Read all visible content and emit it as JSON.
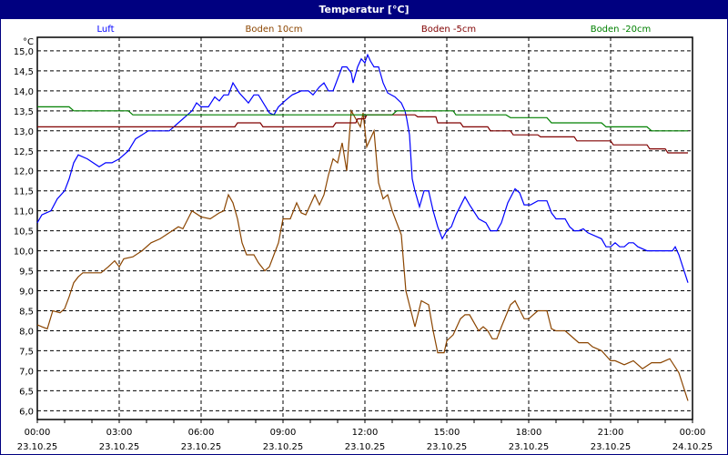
{
  "window": {
    "title": "Temperatur [°C]"
  },
  "chart_data": {
    "type": "line",
    "title": "Temperatur [°C]",
    "ylabel": "°C",
    "ylim": [
      5.78,
      15.34
    ],
    "yticks": [
      "6,0",
      "6,5",
      "7,0",
      "7,5",
      "8,0",
      "8,5",
      "9,0",
      "9,5",
      "10,0",
      "10,5",
      "11,0",
      "11,5",
      "12,0",
      "12,5",
      "13,0",
      "13,5",
      "14,0",
      "14,5",
      "15,0"
    ],
    "xrange": [
      "23.10.25 00:00",
      "24.10.25 00:00"
    ],
    "xticks": [
      {
        "time": "00:00",
        "date": "23.10.25"
      },
      {
        "time": "03:00",
        "date": "23.10.25"
      },
      {
        "time": "06:00",
        "date": "23.10.25"
      },
      {
        "time": "09:00",
        "date": "23.10.25"
      },
      {
        "time": "12:00",
        "date": "23.10.25"
      },
      {
        "time": "15:00",
        "date": "23.10.25"
      },
      {
        "time": "18:00",
        "date": "23.10.25"
      },
      {
        "time": "21:00",
        "date": "23.10.25"
      },
      {
        "time": "00:00",
        "date": "24.10.25"
      }
    ],
    "grid": true,
    "legend_placement": "top",
    "series": [
      {
        "name": "Luft",
        "color": "#0000ff",
        "points": [
          [
            "00:00",
            10.7
          ],
          [
            "00:10",
            10.9
          ],
          [
            "00:30",
            11.0
          ],
          [
            "00:44",
            11.3
          ],
          [
            "01:00",
            11.5
          ],
          [
            "01:10",
            11.8
          ],
          [
            "01:20",
            12.2
          ],
          [
            "01:30",
            12.4
          ],
          [
            "01:50",
            12.3
          ],
          [
            "02:16",
            12.1
          ],
          [
            "02:30",
            12.2
          ],
          [
            "02:44",
            12.2
          ],
          [
            "03:00",
            12.3
          ],
          [
            "03:20",
            12.5
          ],
          [
            "03:36",
            12.8
          ],
          [
            "03:50",
            12.9
          ],
          [
            "04:04",
            13.0
          ],
          [
            "04:50",
            13.0
          ],
          [
            "05:10",
            13.2
          ],
          [
            "05:40",
            13.5
          ],
          [
            "05:50",
            13.7
          ],
          [
            "06:00",
            13.6
          ],
          [
            "06:16",
            13.6
          ],
          [
            "06:30",
            13.85
          ],
          [
            "06:40",
            13.75
          ],
          [
            "06:50",
            13.9
          ],
          [
            "07:00",
            13.9
          ],
          [
            "07:10",
            14.2
          ],
          [
            "07:24",
            13.95
          ],
          [
            "07:44",
            13.7
          ],
          [
            "07:56",
            13.9
          ],
          [
            "08:06",
            13.9
          ],
          [
            "08:30",
            13.45
          ],
          [
            "08:40",
            13.4
          ],
          [
            "08:50",
            13.6
          ],
          [
            "09:04",
            13.75
          ],
          [
            "09:20",
            13.9
          ],
          [
            "09:40",
            14.0
          ],
          [
            "09:56",
            14.0
          ],
          [
            "10:06",
            13.9
          ],
          [
            "10:20",
            14.1
          ],
          [
            "10:30",
            14.2
          ],
          [
            "10:40",
            14.0
          ],
          [
            "10:50",
            14.0
          ],
          [
            "11:00",
            14.3
          ],
          [
            "11:10",
            14.6
          ],
          [
            "11:20",
            14.6
          ],
          [
            "11:30",
            14.45
          ],
          [
            "11:34",
            14.2
          ],
          [
            "11:44",
            14.6
          ],
          [
            "11:52",
            14.8
          ],
          [
            "12:00",
            14.7
          ],
          [
            "12:06",
            14.9
          ],
          [
            "12:12",
            14.75
          ],
          [
            "12:20",
            14.6
          ],
          [
            "12:30",
            14.6
          ],
          [
            "12:40",
            14.2
          ],
          [
            "12:50",
            13.95
          ],
          [
            "13:06",
            13.85
          ],
          [
            "13:20",
            13.7
          ],
          [
            "13:28",
            13.5
          ],
          [
            "13:32",
            13.3
          ],
          [
            "13:38",
            12.9
          ],
          [
            "13:44",
            11.8
          ],
          [
            "13:50",
            11.5
          ],
          [
            "14:00",
            11.1
          ],
          [
            "14:10",
            11.5
          ],
          [
            "14:20",
            11.5
          ],
          [
            "14:30",
            11.0
          ],
          [
            "14:40",
            10.6
          ],
          [
            "14:50",
            10.3
          ],
          [
            "15:00",
            10.5
          ],
          [
            "15:10",
            10.6
          ],
          [
            "15:20",
            10.9
          ],
          [
            "15:40",
            11.35
          ],
          [
            "15:50",
            11.15
          ],
          [
            "16:10",
            10.8
          ],
          [
            "16:26",
            10.7
          ],
          [
            "16:36",
            10.5
          ],
          [
            "16:50",
            10.5
          ],
          [
            "17:00",
            10.7
          ],
          [
            "17:14",
            11.2
          ],
          [
            "17:30",
            11.55
          ],
          [
            "17:40",
            11.45
          ],
          [
            "17:50",
            11.15
          ],
          [
            "18:04",
            11.15
          ],
          [
            "18:20",
            11.25
          ],
          [
            "18:40",
            11.25
          ],
          [
            "18:50",
            10.95
          ],
          [
            "19:00",
            10.8
          ],
          [
            "19:20",
            10.8
          ],
          [
            "19:30",
            10.6
          ],
          [
            "19:40",
            10.5
          ],
          [
            "19:50",
            10.5
          ],
          [
            "20:00",
            10.55
          ],
          [
            "20:10",
            10.45
          ],
          [
            "20:30",
            10.35
          ],
          [
            "20:40",
            10.3
          ],
          [
            "20:50",
            10.1
          ],
          [
            "21:00",
            10.1
          ],
          [
            "21:10",
            10.2
          ],
          [
            "21:20",
            10.1
          ],
          [
            "21:30",
            10.1
          ],
          [
            "21:40",
            10.2
          ],
          [
            "21:50",
            10.2
          ],
          [
            "22:00",
            10.1
          ],
          [
            "22:20",
            10.0
          ],
          [
            "23:16",
            10.0
          ],
          [
            "23:22",
            10.1
          ],
          [
            "23:30",
            9.9
          ],
          [
            "23:50",
            9.2
          ]
        ]
      },
      {
        "name": "Boden 10cm",
        "color": "#8b4500",
        "points": [
          [
            "00:00",
            8.15
          ],
          [
            "00:10",
            8.1
          ],
          [
            "00:22",
            8.05
          ],
          [
            "00:34",
            8.5
          ],
          [
            "00:50",
            8.45
          ],
          [
            "01:00",
            8.55
          ],
          [
            "01:10",
            8.85
          ],
          [
            "01:20",
            9.2
          ],
          [
            "01:30",
            9.35
          ],
          [
            "01:40",
            9.45
          ],
          [
            "02:20",
            9.45
          ],
          [
            "02:36",
            9.6
          ],
          [
            "02:50",
            9.75
          ],
          [
            "03:00",
            9.6
          ],
          [
            "03:10",
            9.8
          ],
          [
            "03:30",
            9.85
          ],
          [
            "03:50",
            10.0
          ],
          [
            "04:10",
            10.2
          ],
          [
            "04:30",
            10.3
          ],
          [
            "04:50",
            10.45
          ],
          [
            "05:10",
            10.6
          ],
          [
            "05:20",
            10.55
          ],
          [
            "05:40",
            11.0
          ],
          [
            "06:00",
            10.85
          ],
          [
            "06:20",
            10.8
          ],
          [
            "06:40",
            10.95
          ],
          [
            "06:50",
            11.0
          ],
          [
            "07:00",
            11.4
          ],
          [
            "07:10",
            11.2
          ],
          [
            "07:20",
            10.8
          ],
          [
            "07:30",
            10.2
          ],
          [
            "07:40",
            9.9
          ],
          [
            "07:56",
            9.9
          ],
          [
            "08:06",
            9.7
          ],
          [
            "08:20",
            9.5
          ],
          [
            "08:30",
            9.6
          ],
          [
            "08:40",
            9.9
          ],
          [
            "08:50",
            10.2
          ],
          [
            "09:00",
            10.8
          ],
          [
            "09:16",
            10.8
          ],
          [
            "09:30",
            11.2
          ],
          [
            "09:40",
            10.95
          ],
          [
            "09:50",
            10.9
          ],
          [
            "10:10",
            11.4
          ],
          [
            "10:20",
            11.15
          ],
          [
            "10:30",
            11.4
          ],
          [
            "10:40",
            11.9
          ],
          [
            "10:50",
            12.3
          ],
          [
            "11:00",
            12.2
          ],
          [
            "11:10",
            12.7
          ],
          [
            "11:20",
            12.0
          ],
          [
            "11:30",
            13.5
          ],
          [
            "11:40",
            13.3
          ],
          [
            "11:50",
            13.1
          ],
          [
            "11:56",
            13.45
          ],
          [
            "12:04",
            12.6
          ],
          [
            "12:20",
            13.0
          ],
          [
            "12:30",
            11.7
          ],
          [
            "12:40",
            11.3
          ],
          [
            "12:50",
            11.4
          ],
          [
            "13:00",
            11.0
          ],
          [
            "13:20",
            10.4
          ],
          [
            "13:30",
            9.0
          ],
          [
            "13:50",
            8.1
          ],
          [
            "14:04",
            8.75
          ],
          [
            "14:20",
            8.65
          ],
          [
            "14:30",
            8.0
          ],
          [
            "14:40",
            7.45
          ],
          [
            "14:54",
            7.45
          ],
          [
            "15:00",
            7.75
          ],
          [
            "15:14",
            7.9
          ],
          [
            "15:30",
            8.3
          ],
          [
            "15:40",
            8.4
          ],
          [
            "15:50",
            8.4
          ],
          [
            "16:10",
            8.0
          ],
          [
            "16:20",
            8.1
          ],
          [
            "16:30",
            8.0
          ],
          [
            "16:40",
            7.8
          ],
          [
            "16:50",
            7.8
          ],
          [
            "17:00",
            8.1
          ],
          [
            "17:20",
            8.65
          ],
          [
            "17:30",
            8.75
          ],
          [
            "17:50",
            8.3
          ],
          [
            "18:00",
            8.3
          ],
          [
            "18:20",
            8.5
          ],
          [
            "18:40",
            8.5
          ],
          [
            "18:50",
            8.05
          ],
          [
            "19:00",
            8.0
          ],
          [
            "19:20",
            8.0
          ],
          [
            "19:50",
            7.7
          ],
          [
            "20:10",
            7.7
          ],
          [
            "20:20",
            7.6
          ],
          [
            "20:40",
            7.5
          ],
          [
            "21:00",
            7.25
          ],
          [
            "21:10",
            7.25
          ],
          [
            "21:30",
            7.15
          ],
          [
            "21:50",
            7.25
          ],
          [
            "22:10",
            7.05
          ],
          [
            "22:30",
            7.2
          ],
          [
            "22:50",
            7.2
          ],
          [
            "23:10",
            7.3
          ],
          [
            "23:30",
            6.95
          ],
          [
            "23:50",
            6.25
          ]
        ]
      },
      {
        "name": "Boden -5cm",
        "color": "#800000",
        "points": [
          [
            "00:00",
            13.1
          ],
          [
            "07:14",
            13.1
          ],
          [
            "07:20",
            13.2
          ],
          [
            "08:10",
            13.2
          ],
          [
            "08:16",
            13.1
          ],
          [
            "10:50",
            13.1
          ],
          [
            "10:56",
            13.2
          ],
          [
            "11:40",
            13.2
          ],
          [
            "11:44",
            13.3
          ],
          [
            "12:00",
            13.3
          ],
          [
            "12:04",
            13.4
          ],
          [
            "13:50",
            13.4
          ],
          [
            "13:56",
            13.35
          ],
          [
            "14:36",
            13.35
          ],
          [
            "14:40",
            13.2
          ],
          [
            "15:30",
            13.2
          ],
          [
            "15:36",
            13.1
          ],
          [
            "16:30",
            13.1
          ],
          [
            "16:36",
            13.0
          ],
          [
            "17:20",
            13.0
          ],
          [
            "17:26",
            12.9
          ],
          [
            "18:20",
            12.9
          ],
          [
            "18:26",
            12.85
          ],
          [
            "19:40",
            12.85
          ],
          [
            "19:46",
            12.75
          ],
          [
            "21:00",
            12.75
          ],
          [
            "21:06",
            12.65
          ],
          [
            "22:20",
            12.65
          ],
          [
            "22:26",
            12.55
          ],
          [
            "23:00",
            12.55
          ],
          [
            "23:06",
            12.45
          ],
          [
            "23:50",
            12.45
          ]
        ]
      },
      {
        "name": "Boden -20cm",
        "color": "#008000",
        "points": [
          [
            "00:00",
            13.6
          ],
          [
            "01:10",
            13.6
          ],
          [
            "01:20",
            13.5
          ],
          [
            "03:20",
            13.5
          ],
          [
            "03:30",
            13.4
          ],
          [
            "13:00",
            13.4
          ],
          [
            "13:10",
            13.5
          ],
          [
            "15:14",
            13.5
          ],
          [
            "15:20",
            13.4
          ],
          [
            "17:10",
            13.4
          ],
          [
            "17:20",
            13.33
          ],
          [
            "18:40",
            13.33
          ],
          [
            "18:50",
            13.2
          ],
          [
            "20:40",
            13.2
          ],
          [
            "20:50",
            13.1
          ],
          [
            "22:20",
            13.1
          ],
          [
            "22:30",
            13.0
          ],
          [
            "23:50",
            13.0
          ]
        ]
      }
    ]
  }
}
